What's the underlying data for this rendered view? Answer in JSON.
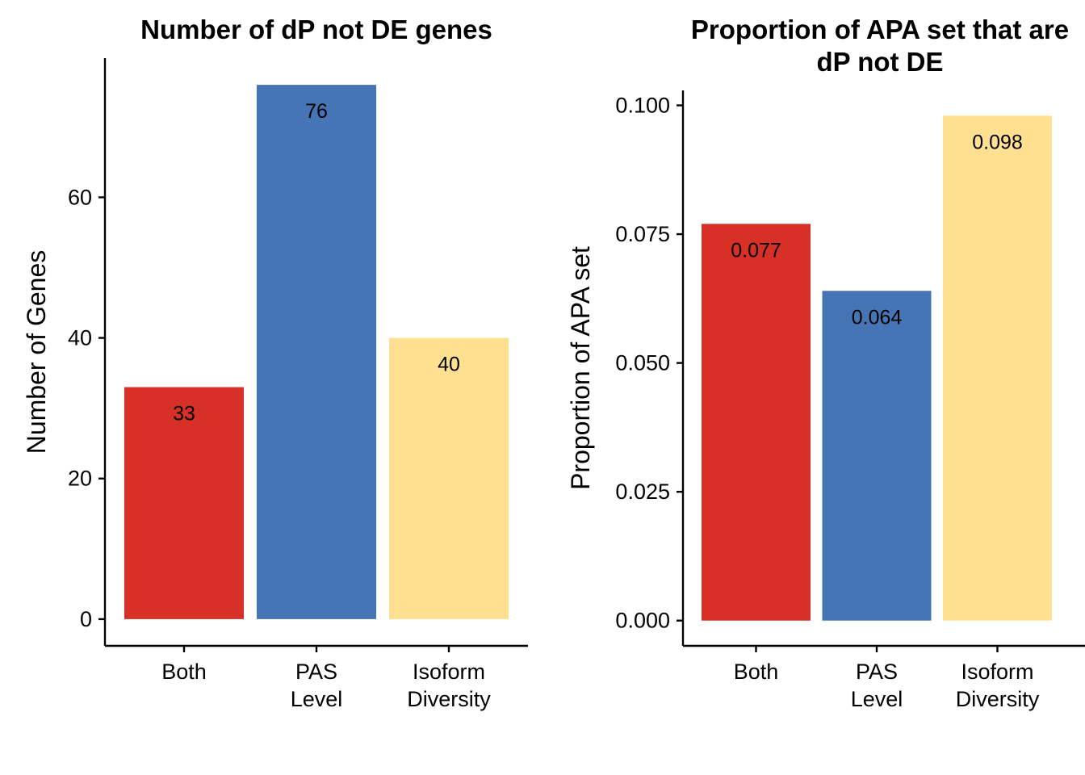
{
  "chart_data": [
    {
      "type": "bar",
      "title": "Number of dP not DE genes",
      "xlabel": "",
      "ylabel": "Number of Genes",
      "categories": [
        "Both",
        "PAS\nLevel",
        "Isoform\nDiversity"
      ],
      "values": [
        33,
        76,
        40
      ],
      "value_labels": [
        "33",
        "76",
        "40"
      ],
      "colors": [
        "#d73027",
        "#4575b4",
        "#fee090"
      ],
      "yticks": [
        0,
        20,
        40,
        60
      ],
      "ytick_labels": [
        "0",
        "20",
        "40",
        "60"
      ],
      "ylim": [
        -3.8,
        79.8
      ],
      "grid": false,
      "legend": "none"
    },
    {
      "type": "bar",
      "title": "Proportion of APA set that are\ndP not DE",
      "xlabel": "",
      "ylabel": "Proportion of APA set",
      "categories": [
        "Both",
        "PAS\nLevel",
        "Isoform\nDiversity"
      ],
      "values": [
        0.077,
        0.064,
        0.098
      ],
      "value_labels": [
        "0.077",
        "0.064",
        "0.098"
      ],
      "colors": [
        "#d73027",
        "#4575b4",
        "#fee090"
      ],
      "yticks": [
        0.0,
        0.025,
        0.05,
        0.075,
        0.1
      ],
      "ytick_labels": [
        "0.000",
        "0.025",
        "0.050",
        "0.075",
        "0.100"
      ],
      "ylim": [
        -0.0049,
        0.1029
      ],
      "grid": false,
      "legend": "none"
    }
  ]
}
